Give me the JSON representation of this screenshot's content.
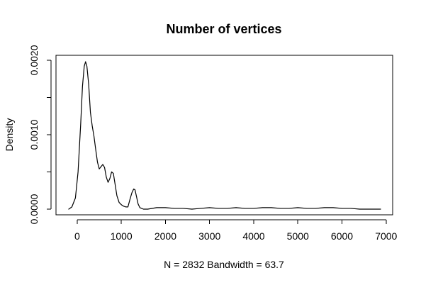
{
  "chart_data": {
    "type": "line",
    "title": "Number of vertices",
    "xlabel": "N = 2832   Bandwidth = 63.7",
    "ylabel": "Density",
    "xlim": [
      -191,
      6875
    ],
    "ylim": [
      0,
      0.00198
    ],
    "x_ticks": [
      0,
      1000,
      2000,
      3000,
      4000,
      5000,
      6000,
      7000
    ],
    "y_ticks": [
      0.0,
      0.001,
      0.002
    ],
    "y_tick_labels": [
      "0.0000",
      "0.0010",
      "0.0020"
    ],
    "grid": false,
    "legend": "none",
    "series": [
      {
        "x": [
          -191,
          -120,
          -40,
          20,
          80,
          120,
          160,
          190,
          220,
          260,
          300,
          340,
          380,
          420,
          460,
          500,
          540,
          580,
          620,
          660,
          700,
          740,
          780,
          820,
          860,
          900,
          950,
          1000,
          1050,
          1100,
          1150,
          1200,
          1240,
          1280,
          1310,
          1340,
          1380,
          1420,
          1460,
          1500,
          1600,
          1800,
          2000,
          2200,
          2400,
          2600,
          2800,
          3000,
          3200,
          3400,
          3600,
          3800,
          4000,
          4200,
          4400,
          4600,
          4800,
          5000,
          5200,
          5400,
          5600,
          5800,
          6000,
          6200,
          6400,
          6600,
          6875
        ],
        "y": [
          0.0,
          3e-05,
          0.00015,
          0.0005,
          0.00115,
          0.00165,
          0.00192,
          0.00198,
          0.00192,
          0.00168,
          0.0013,
          0.00112,
          0.00098,
          0.0008,
          0.00063,
          0.00054,
          0.00057,
          0.0006,
          0.00056,
          0.00043,
          0.00036,
          0.00041,
          0.0005,
          0.00048,
          0.00033,
          0.00018,
          9e-05,
          6e-05,
          4e-05,
          3e-05,
          3e-05,
          0.00014,
          0.00022,
          0.00027,
          0.00026,
          0.00018,
          7e-05,
          2e-05,
          1e-05,
          0.0,
          0.0,
          2e-05,
          2e-05,
          1e-05,
          1e-05,
          0.0,
          1e-05,
          2e-05,
          1e-05,
          1e-05,
          2e-05,
          1e-05,
          1e-05,
          2e-05,
          2e-05,
          1e-05,
          1e-05,
          2e-05,
          1e-05,
          1e-05,
          2e-05,
          2e-05,
          1e-05,
          1e-05,
          0.0,
          0.0,
          0.0
        ]
      }
    ]
  }
}
